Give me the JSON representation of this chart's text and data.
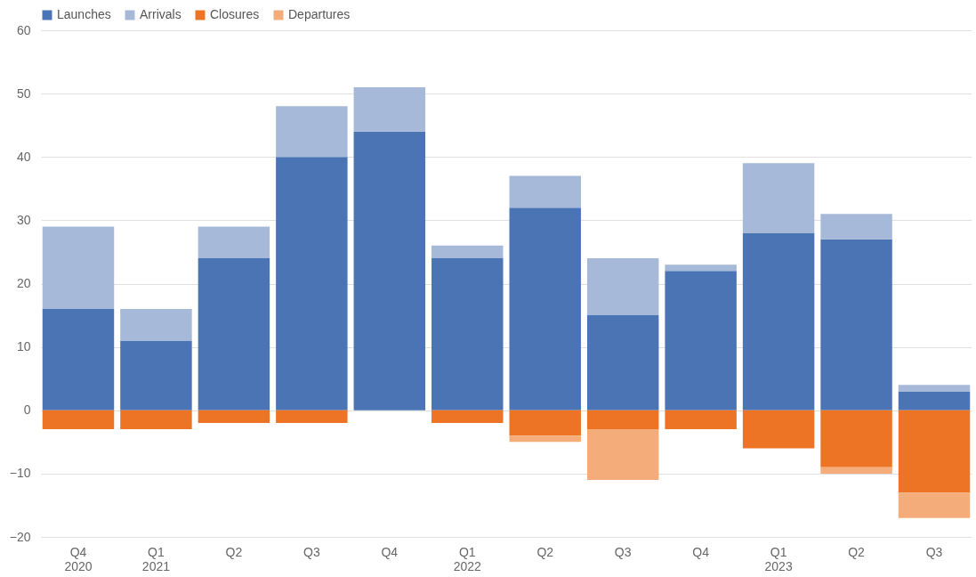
{
  "chart_data": {
    "type": "bar",
    "stacked": true,
    "categories": [
      "Q4\n2020",
      "Q1\n2021",
      "Q2",
      "Q3",
      "Q4",
      "Q1\n2022",
      "Q2",
      "Q3",
      "Q4",
      "Q1\n2023",
      "Q2",
      "Q3"
    ],
    "series": [
      {
        "name": "Launches",
        "color": "#4a74b4",
        "values": [
          16,
          11,
          24,
          40,
          44,
          24,
          32,
          15,
          22,
          28,
          27,
          3
        ]
      },
      {
        "name": "Arrivals",
        "color": "#a6b9d9",
        "values": [
          13,
          5,
          5,
          8,
          7,
          2,
          5,
          9,
          1,
          11,
          4,
          1
        ]
      },
      {
        "name": "Closures",
        "color": "#ec7424",
        "values": [
          -3,
          -3,
          -2,
          -2,
          0,
          -2,
          -4,
          -3,
          -3,
          -6,
          -9,
          -13
        ]
      },
      {
        "name": "Departures",
        "color": "#f4ad7a",
        "values": [
          0,
          0,
          0,
          0,
          0,
          0,
          -1,
          -8,
          0,
          0,
          -1,
          -4
        ]
      }
    ],
    "ylim": [
      -20,
      60
    ],
    "yticks": [
      -20,
      -10,
      0,
      10,
      20,
      30,
      40,
      50,
      60
    ],
    "grid": "y",
    "legend": "top left"
  }
}
